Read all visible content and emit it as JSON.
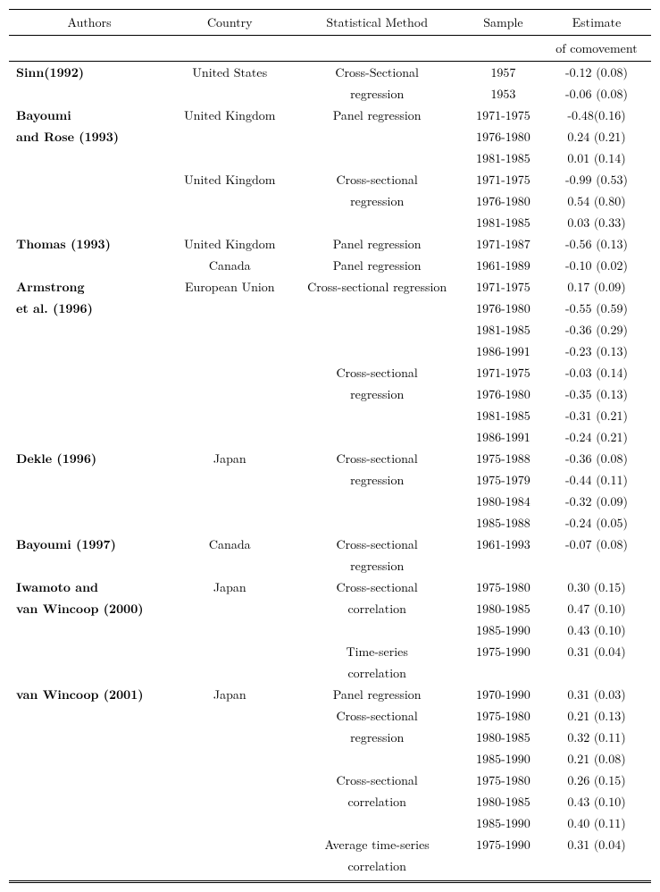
{
  "headers": {
    "authors": "Authors",
    "country": "Country",
    "method": "Statistical Method",
    "sample": "Sample",
    "estimate1": "Estimate",
    "estimate2": "of comovement"
  },
  "rows": [
    {
      "authors": "Sinn(1992)",
      "bold": true,
      "country": "United States",
      "method": "Cross-Sectional",
      "sample": "1957",
      "estimate": "-0.12 (0.08)"
    },
    {
      "authors": "",
      "country": "",
      "method": "regression",
      "sample": "1953",
      "estimate": "-0.06 (0.08)"
    },
    {
      "authors": "Bayoumi",
      "bold": true,
      "country": "United Kingdom",
      "method": "Panel regression",
      "sample": "1971-1975",
      "estimate": "-0.48(0.16)"
    },
    {
      "authors": "and Rose (1993)",
      "bold": true,
      "country": "",
      "method": "",
      "sample": "1976-1980",
      "estimate": "0.24 (0.21)"
    },
    {
      "authors": "",
      "country": "",
      "method": "",
      "sample": "1981-1985",
      "estimate": "0.01 (0.14)"
    },
    {
      "authors": "",
      "country": "United Kingdom",
      "method": "Cross-sectional",
      "sample": "1971-1975",
      "estimate": "-0.99 (0.53)"
    },
    {
      "authors": "",
      "country": "",
      "method": "regression",
      "sample": "1976-1980",
      "estimate": "0.54 (0.80)"
    },
    {
      "authors": "",
      "country": "",
      "method": "",
      "sample": "1981-1985",
      "estimate": "0.03 (0.33)"
    },
    {
      "authors": "Thomas (1993)",
      "bold": true,
      "country": "United Kingdom",
      "method": "Panel regression",
      "sample": "1971-1987",
      "estimate": "-0.56 (0.13)"
    },
    {
      "authors": "",
      "country": "Canada",
      "method": "Panel regression",
      "sample": "1961-1989",
      "estimate": "-0.10 (0.02)"
    },
    {
      "authors": "Armstrong",
      "bold": true,
      "country": "European Union",
      "method": "Cross-sectional regression",
      "sample": "1971-1975",
      "estimate": "0.17 (0.09)"
    },
    {
      "authors": "et al. (1996)",
      "bold": true,
      "country": "",
      "method": "",
      "sample": "1976-1980",
      "estimate": "-0.55 (0.59)"
    },
    {
      "authors": "",
      "country": "",
      "method": "",
      "sample": "1981-1985",
      "estimate": "-0.36 (0.29)"
    },
    {
      "authors": "",
      "country": "",
      "method": "",
      "sample": "1986-1991",
      "estimate": "-0.23 (0.13)"
    },
    {
      "authors": "",
      "country": "",
      "method": "Cross-sectional",
      "sample": "1971-1975",
      "estimate": "-0.03 (0.14)"
    },
    {
      "authors": "",
      "country": "",
      "method": "regression",
      "sample": "1976-1980",
      "estimate": "-0.35 (0.13)"
    },
    {
      "authors": "",
      "country": "",
      "method": "",
      "sample": "1981-1985",
      "estimate": "-0.31 (0.21)"
    },
    {
      "authors": "",
      "country": "",
      "method": "",
      "sample": "1986-1991",
      "estimate": "-0.24 (0.21)"
    },
    {
      "authors": "Dekle (1996)",
      "bold": true,
      "country": "Japan",
      "method": "Cross-sectional",
      "sample": "1975-1988",
      "estimate": "-0.36 (0.08)"
    },
    {
      "authors": "",
      "country": "",
      "method": "regression",
      "sample": "1975-1979",
      "estimate": "-0.44 (0.11)"
    },
    {
      "authors": "",
      "country": "",
      "method": "",
      "sample": "1980-1984",
      "estimate": "-0.32 (0.09)"
    },
    {
      "authors": "",
      "country": "",
      "method": "",
      "sample": "1985-1988",
      "estimate": "-0.24 (0.05)"
    },
    {
      "authors": "Bayoumi (1997)",
      "bold": true,
      "country": "Canada",
      "method": "Cross-sectional",
      "sample": "1961-1993",
      "estimate": "-0.07 (0.08)"
    },
    {
      "authors": "",
      "country": "",
      "method": "regression",
      "sample": "",
      "estimate": ""
    },
    {
      "authors": "Iwamoto and",
      "bold": true,
      "country": "Japan",
      "method": "Cross-sectional",
      "sample": "1975-1980",
      "estimate": "0.30 (0.15)"
    },
    {
      "authors": "van Wincoop (2000)",
      "bold": true,
      "country": "",
      "method": "correlation",
      "sample": "1980-1985",
      "estimate": "0.47 (0.10)"
    },
    {
      "authors": "",
      "country": "",
      "method": "",
      "sample": "1985-1990",
      "estimate": "0.43 (0.10)"
    },
    {
      "authors": "",
      "country": "",
      "method": "Time-series",
      "sample": "1975-1990",
      "estimate": "0.31 (0.04)"
    },
    {
      "authors": "",
      "country": "",
      "method": "correlation",
      "sample": "",
      "estimate": ""
    },
    {
      "authors": "van Wincoop (2001)",
      "bold": true,
      "country": "Japan",
      "method": "Panel regression",
      "sample": "1970-1990",
      "estimate": "0.31 (0.03)"
    },
    {
      "authors": "",
      "country": "",
      "method": "Cross-sectional",
      "sample": "1975-1980",
      "estimate": "0.21 (0.13)"
    },
    {
      "authors": "",
      "country": "",
      "method": "regression",
      "sample": "1980-1985",
      "estimate": "0.32 (0.11)"
    },
    {
      "authors": "",
      "country": "",
      "method": "",
      "sample": "1985-1990",
      "estimate": "0.21 (0.08)"
    },
    {
      "authors": "",
      "country": "",
      "method": "Cross-sectional",
      "sample": "1975-1980",
      "estimate": "0.26 (0.15)"
    },
    {
      "authors": "",
      "country": "",
      "method": "correlation",
      "sample": "1980-1985",
      "estimate": "0.43 (0.10)"
    },
    {
      "authors": "",
      "country": "",
      "method": "",
      "sample": "1985-1990",
      "estimate": "0.40 (0.11)"
    },
    {
      "authors": "",
      "country": "",
      "method": "Average time-series",
      "sample": "1975-1990",
      "estimate": "0.31 (0.04)"
    },
    {
      "authors": "",
      "country": "",
      "method": "correlation",
      "sample": "",
      "estimate": "",
      "last": true
    }
  ]
}
